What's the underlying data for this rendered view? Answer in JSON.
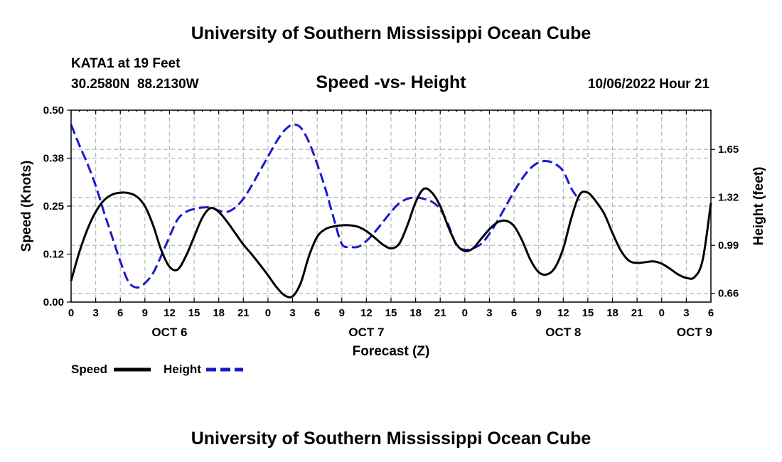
{
  "chart_data": {
    "type": "line",
    "title": "University of Southern Mississippi Ocean Cube",
    "footer_title": "University of Southern Mississippi Ocean Cube",
    "subtitle": "Speed -vs- Height",
    "station": "KATA1 at 19 Feet",
    "coords": "30.2580N  88.2130W",
    "datetime": "10/06/2022 Hour 21",
    "xlabel": "Forecast (Z)",
    "ylabel_left": "Speed (Knots)",
    "ylabel_right": "Height (feet)",
    "x_range_hours": [
      0,
      78
    ],
    "x_ticks": [
      {
        "h": 0,
        "label": "0"
      },
      {
        "h": 3,
        "label": "3"
      },
      {
        "h": 6,
        "label": "6"
      },
      {
        "h": 9,
        "label": "9"
      },
      {
        "h": 12,
        "label": "12"
      },
      {
        "h": 15,
        "label": "15"
      },
      {
        "h": 18,
        "label": "18"
      },
      {
        "h": 21,
        "label": "21"
      },
      {
        "h": 24,
        "label": "0"
      },
      {
        "h": 27,
        "label": "3"
      },
      {
        "h": 30,
        "label": "6"
      },
      {
        "h": 33,
        "label": "9"
      },
      {
        "h": 36,
        "label": "12"
      },
      {
        "h": 39,
        "label": "15"
      },
      {
        "h": 42,
        "label": "18"
      },
      {
        "h": 45,
        "label": "21"
      },
      {
        "h": 48,
        "label": "0"
      },
      {
        "h": 51,
        "label": "3"
      },
      {
        "h": 54,
        "label": "6"
      },
      {
        "h": 57,
        "label": "9"
      },
      {
        "h": 60,
        "label": "12"
      },
      {
        "h": 63,
        "label": "15"
      },
      {
        "h": 66,
        "label": "18"
      },
      {
        "h": 69,
        "label": "21"
      },
      {
        "h": 72,
        "label": "0"
      },
      {
        "h": 75,
        "label": "3"
      },
      {
        "h": 78,
        "label": "6"
      }
    ],
    "day_labels": [
      {
        "h": 12,
        "label": "OCT 6"
      },
      {
        "h": 36,
        "label": "OCT 7"
      },
      {
        "h": 60,
        "label": "OCT 8"
      },
      {
        "h": 76,
        "label": "OCT 9"
      }
    ],
    "ylim_left": [
      0,
      0.5
    ],
    "yticks_left": [
      {
        "v": 0.0,
        "label": "0.00"
      },
      {
        "v": 0.125,
        "label": "0.12"
      },
      {
        "v": 0.25,
        "label": "0.25"
      },
      {
        "v": 0.375,
        "label": "0.38"
      },
      {
        "v": 0.5,
        "label": "0.50"
      }
    ],
    "ylim_right": [
      0.6,
      1.92
    ],
    "yticks_right": [
      {
        "v": 0.66,
        "label": "0.66"
      },
      {
        "v": 0.99,
        "label": "0.99"
      },
      {
        "v": 1.32,
        "label": "1.32"
      },
      {
        "v": 1.65,
        "label": "1.65"
      }
    ],
    "grid": true,
    "series": [
      {
        "name": "Speed",
        "axis": "left",
        "color": "#000000",
        "dash": "none",
        "points": [
          [
            0,
            0.055
          ],
          [
            1,
            0.13
          ],
          [
            2,
            0.19
          ],
          [
            3,
            0.235
          ],
          [
            4,
            0.265
          ],
          [
            5,
            0.28
          ],
          [
            6,
            0.285
          ],
          [
            7,
            0.284
          ],
          [
            8,
            0.275
          ],
          [
            9,
            0.25
          ],
          [
            10,
            0.2
          ],
          [
            11,
            0.135
          ],
          [
            12,
            0.092
          ],
          [
            13,
            0.085
          ],
          [
            14,
            0.12
          ],
          [
            15,
            0.17
          ],
          [
            16,
            0.22
          ],
          [
            17,
            0.245
          ],
          [
            18,
            0.235
          ],
          [
            19,
            0.21
          ],
          [
            20,
            0.18
          ],
          [
            21,
            0.15
          ],
          [
            22,
            0.125
          ],
          [
            23,
            0.098
          ],
          [
            24,
            0.07
          ],
          [
            25,
            0.04
          ],
          [
            26,
            0.018
          ],
          [
            27,
            0.015
          ],
          [
            28,
            0.05
          ],
          [
            29,
            0.12
          ],
          [
            30,
            0.17
          ],
          [
            31,
            0.19
          ],
          [
            32,
            0.197
          ],
          [
            33,
            0.2
          ],
          [
            34,
            0.2
          ],
          [
            35,
            0.196
          ],
          [
            36,
            0.185
          ],
          [
            37,
            0.168
          ],
          [
            38,
            0.15
          ],
          [
            39,
            0.14
          ],
          [
            40,
            0.152
          ],
          [
            41,
            0.2
          ],
          [
            42,
            0.26
          ],
          [
            43,
            0.295
          ],
          [
            44,
            0.285
          ],
          [
            45,
            0.25
          ],
          [
            46,
            0.195
          ],
          [
            47,
            0.15
          ],
          [
            48,
            0.133
          ],
          [
            49,
            0.14
          ],
          [
            50,
            0.165
          ],
          [
            51,
            0.19
          ],
          [
            52,
            0.208
          ],
          [
            53,
            0.212
          ],
          [
            54,
            0.198
          ],
          [
            55,
            0.16
          ],
          [
            56,
            0.11
          ],
          [
            57,
            0.078
          ],
          [
            58,
            0.072
          ],
          [
            59,
            0.09
          ],
          [
            60,
            0.14
          ],
          [
            61,
            0.22
          ],
          [
            62,
            0.28
          ],
          [
            63,
            0.285
          ],
          [
            64,
            0.262
          ],
          [
            65,
            0.23
          ],
          [
            66,
            0.18
          ],
          [
            67,
            0.135
          ],
          [
            68,
            0.108
          ],
          [
            69,
            0.102
          ],
          [
            70,
            0.104
          ],
          [
            71,
            0.106
          ],
          [
            72,
            0.1
          ],
          [
            73,
            0.087
          ],
          [
            74,
            0.072
          ],
          [
            75,
            0.063
          ],
          [
            76,
            0.065
          ],
          [
            77,
            0.11
          ],
          [
            78,
            0.258
          ]
        ]
      },
      {
        "name": "Height",
        "axis": "right",
        "color": "#1a1acc",
        "dash": "14,6",
        "points": [
          [
            0,
            1.82
          ],
          [
            1,
            1.68
          ],
          [
            2,
            1.55
          ],
          [
            3,
            1.4
          ],
          [
            4,
            1.22
          ],
          [
            5,
            1.05
          ],
          [
            6,
            0.88
          ],
          [
            7,
            0.74
          ],
          [
            8,
            0.7
          ],
          [
            9,
            0.73
          ],
          [
            10,
            0.8
          ],
          [
            11,
            0.92
          ],
          [
            12,
            1.05
          ],
          [
            13,
            1.17
          ],
          [
            14,
            1.22
          ],
          [
            15,
            1.24
          ],
          [
            16,
            1.25
          ],
          [
            17,
            1.25
          ],
          [
            18,
            1.23
          ],
          [
            19,
            1.22
          ],
          [
            20,
            1.25
          ],
          [
            21,
            1.31
          ],
          [
            22,
            1.4
          ],
          [
            23,
            1.5
          ],
          [
            24,
            1.6
          ],
          [
            25,
            1.7
          ],
          [
            26,
            1.78
          ],
          [
            27,
            1.82
          ],
          [
            28,
            1.8
          ],
          [
            29,
            1.7
          ],
          [
            30,
            1.55
          ],
          [
            31,
            1.38
          ],
          [
            32,
            1.18
          ],
          [
            33,
            1.0
          ],
          [
            34,
            0.98
          ],
          [
            35,
            0.98
          ],
          [
            36,
            1.02
          ],
          [
            37,
            1.08
          ],
          [
            38,
            1.15
          ],
          [
            39,
            1.22
          ],
          [
            40,
            1.28
          ],
          [
            41,
            1.31
          ],
          [
            42,
            1.32
          ],
          [
            43,
            1.31
          ],
          [
            44,
            1.29
          ],
          [
            45,
            1.24
          ],
          [
            46,
            1.13
          ],
          [
            47,
            0.99
          ],
          [
            48,
            0.96
          ],
          [
            49,
            0.97
          ],
          [
            50,
            1.0
          ],
          [
            51,
            1.07
          ],
          [
            52,
            1.16
          ],
          [
            53,
            1.26
          ],
          [
            54,
            1.36
          ],
          [
            55,
            1.45
          ],
          [
            56,
            1.52
          ],
          [
            57,
            1.56
          ],
          [
            58,
            1.57
          ],
          [
            59,
            1.55
          ],
          [
            60,
            1.5
          ],
          [
            61,
            1.38
          ],
          [
            62,
            1.3
          ]
        ]
      }
    ],
    "legend": [
      {
        "label": "Speed",
        "color": "#000000",
        "dash": "none"
      },
      {
        "label": "Height",
        "color": "#1a1acc",
        "dash": "14,6"
      }
    ]
  }
}
